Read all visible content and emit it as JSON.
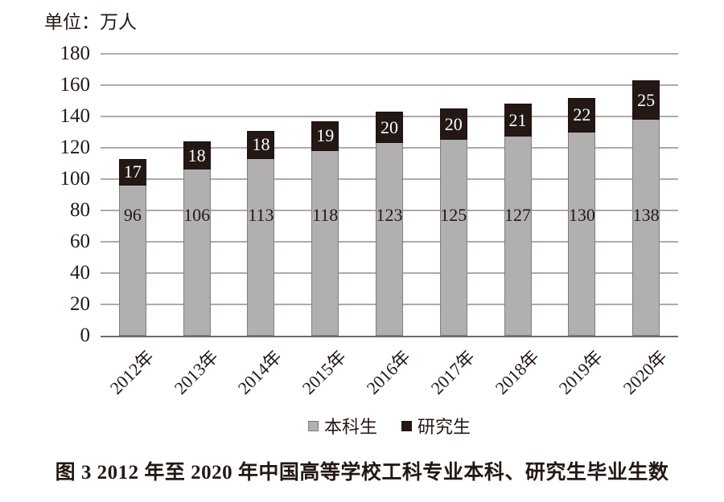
{
  "unit_label": "单位：万人",
  "caption": "图 3  2012 年至 2020 年中国高等学校工科专业本科、研究生毕业生数",
  "legend": {
    "items": [
      {
        "label": "本科生",
        "color": "#b1afaf",
        "border": "#7e7b7a"
      },
      {
        "label": "研究生",
        "color": "#231815",
        "border": "#231815"
      }
    ]
  },
  "colors": {
    "undergrad_bar": "#b1afaf",
    "grad_bar": "#231815",
    "gridline": "#aeabaa",
    "axis": "#6e6b6a",
    "text": "#231815",
    "grad_label_text": "#ffffff",
    "background": "#ffffff"
  },
  "chart_data": {
    "type": "bar",
    "stacked": true,
    "title": "",
    "xlabel": "",
    "ylabel": "单位：万人",
    "categories": [
      "2012年",
      "2013年",
      "2014年",
      "2015年",
      "2016年",
      "2017年",
      "2018年",
      "2019年",
      "2020年"
    ],
    "series": [
      {
        "name": "本科生",
        "color": "#b1afaf",
        "values": [
          96,
          106,
          113,
          118,
          123,
          125,
          127,
          130,
          138
        ]
      },
      {
        "name": "研究生",
        "color": "#231815",
        "values": [
          17,
          18,
          18,
          19,
          20,
          20,
          21,
          22,
          25
        ]
      }
    ],
    "ylim": [
      0,
      180
    ],
    "ytick_step": 20,
    "grid": "horizontal",
    "legend_position": "bottom",
    "xtick_rotation_deg": -45
  }
}
